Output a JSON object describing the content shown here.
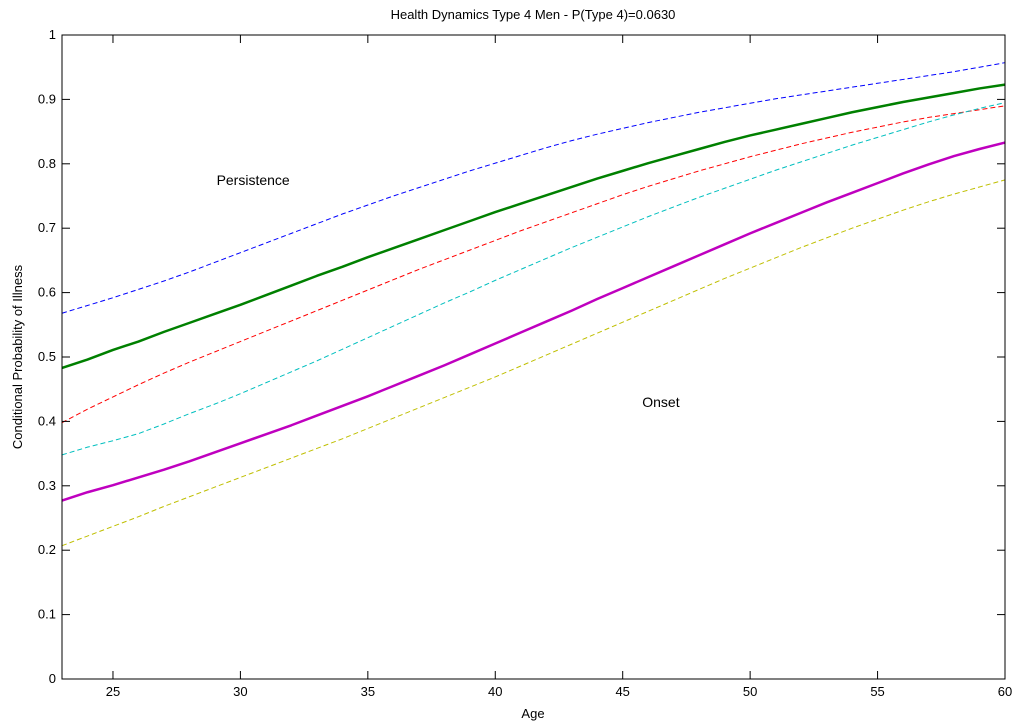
{
  "chart_data": {
    "type": "line",
    "title": "Health Dynamics Type 4 Men - P(Type 4)=0.0630",
    "xlabel": "Age",
    "ylabel": "Conditional Probability of Illness",
    "xlim": [
      23,
      60
    ],
    "ylim": [
      0,
      1
    ],
    "xticks": [
      25,
      30,
      35,
      40,
      45,
      50,
      55,
      60
    ],
    "yticks": [
      0,
      0.1,
      0.2,
      0.3,
      0.4,
      0.5,
      0.6,
      0.7,
      0.8,
      0.9,
      1
    ],
    "ytick_labels": [
      "0",
      "0.1",
      "0.2",
      "0.3",
      "0.4",
      "0.5",
      "0.6",
      "0.7",
      "0.8",
      "0.9",
      "1"
    ],
    "grid": false,
    "annotations": [
      {
        "text": "Persistence",
        "x": 30.5,
        "y": 0.775
      },
      {
        "text": "Onset",
        "x": 46.5,
        "y": 0.43
      }
    ],
    "x": [
      23,
      24,
      25,
      26,
      27,
      28,
      29,
      30,
      31,
      32,
      33,
      34,
      35,
      36,
      37,
      38,
      39,
      40,
      41,
      42,
      43,
      44,
      45,
      46,
      47,
      48,
      49,
      50,
      51,
      52,
      53,
      54,
      55,
      56,
      57,
      58,
      59,
      60
    ],
    "series": [
      {
        "color": "#0000ff",
        "style": "dashed",
        "width": 1,
        "values": [
          0.568,
          0.58,
          0.592,
          0.605,
          0.618,
          0.632,
          0.647,
          0.662,
          0.677,
          0.692,
          0.707,
          0.722,
          0.736,
          0.75,
          0.763,
          0.776,
          0.789,
          0.801,
          0.813,
          0.825,
          0.836,
          0.846,
          0.855,
          0.864,
          0.872,
          0.88,
          0.887,
          0.894,
          0.901,
          0.907,
          0.913,
          0.919,
          0.925,
          0.931,
          0.937,
          0.943,
          0.95,
          0.957
        ]
      },
      {
        "color": "#008000",
        "style": "solid",
        "width": 2.5,
        "values": [
          0.483,
          0.496,
          0.511,
          0.524,
          0.539,
          0.553,
          0.567,
          0.581,
          0.596,
          0.611,
          0.626,
          0.64,
          0.655,
          0.669,
          0.683,
          0.697,
          0.711,
          0.725,
          0.738,
          0.751,
          0.764,
          0.777,
          0.789,
          0.801,
          0.812,
          0.823,
          0.834,
          0.844,
          0.853,
          0.862,
          0.871,
          0.88,
          0.888,
          0.896,
          0.903,
          0.91,
          0.917,
          0.923
        ]
      },
      {
        "color": "#ff0000",
        "style": "dashed",
        "width": 1,
        "values": [
          0.398,
          0.419,
          0.438,
          0.457,
          0.475,
          0.492,
          0.508,
          0.524,
          0.54,
          0.556,
          0.572,
          0.588,
          0.604,
          0.62,
          0.636,
          0.651,
          0.666,
          0.681,
          0.696,
          0.71,
          0.724,
          0.738,
          0.752,
          0.765,
          0.777,
          0.789,
          0.8,
          0.811,
          0.821,
          0.831,
          0.84,
          0.849,
          0.857,
          0.865,
          0.872,
          0.878,
          0.884,
          0.89
        ]
      },
      {
        "color": "#00bfbf",
        "style": "dashed",
        "width": 1,
        "values": [
          0.348,
          0.36,
          0.37,
          0.381,
          0.396,
          0.412,
          0.427,
          0.443,
          0.46,
          0.477,
          0.494,
          0.512,
          0.53,
          0.548,
          0.566,
          0.584,
          0.601,
          0.619,
          0.636,
          0.653,
          0.67,
          0.686,
          0.702,
          0.718,
          0.733,
          0.748,
          0.762,
          0.776,
          0.79,
          0.803,
          0.816,
          0.829,
          0.841,
          0.853,
          0.865,
          0.876,
          0.886,
          0.895
        ]
      },
      {
        "color": "#bf00bf",
        "style": "solid",
        "width": 2.5,
        "values": [
          0.277,
          0.29,
          0.301,
          0.313,
          0.325,
          0.338,
          0.352,
          0.366,
          0.38,
          0.394,
          0.409,
          0.424,
          0.439,
          0.455,
          0.471,
          0.487,
          0.504,
          0.521,
          0.538,
          0.555,
          0.572,
          0.59,
          0.607,
          0.624,
          0.641,
          0.658,
          0.675,
          0.692,
          0.708,
          0.724,
          0.74,
          0.755,
          0.77,
          0.785,
          0.799,
          0.812,
          0.823,
          0.833
        ]
      },
      {
        "color": "#bfbf00",
        "style": "dashed",
        "width": 1,
        "values": [
          0.207,
          0.222,
          0.237,
          0.252,
          0.268,
          0.283,
          0.298,
          0.313,
          0.328,
          0.343,
          0.358,
          0.373,
          0.389,
          0.405,
          0.421,
          0.437,
          0.453,
          0.469,
          0.486,
          0.503,
          0.52,
          0.537,
          0.554,
          0.571,
          0.588,
          0.605,
          0.622,
          0.638,
          0.654,
          0.67,
          0.685,
          0.7,
          0.714,
          0.728,
          0.741,
          0.753,
          0.764,
          0.775
        ]
      }
    ]
  }
}
